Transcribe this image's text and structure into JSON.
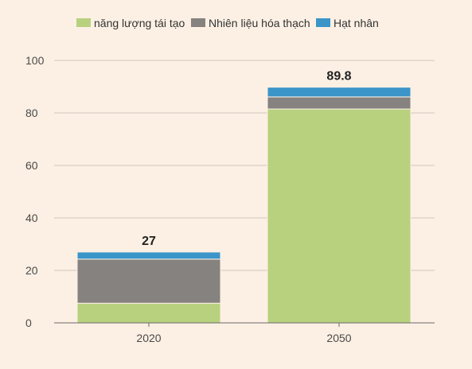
{
  "chart_data": {
    "type": "bar",
    "stacked": true,
    "categories": [
      "2020",
      "2050"
    ],
    "series": [
      {
        "name": "năng lượng tái tạo",
        "color": "#b8d17e",
        "values": [
          7.5,
          81.5
        ]
      },
      {
        "name": "Nhiên liệu hóa thạch",
        "color": "#858280",
        "values": [
          16.8,
          4.6
        ]
      },
      {
        "name": "Hạt nhân",
        "color": "#3b95c9",
        "values": [
          2.7,
          3.7
        ]
      }
    ],
    "totals": [
      "27",
      "89.8"
    ],
    "ylim": [
      0,
      100
    ],
    "yticks": [
      0,
      20,
      40,
      60,
      80,
      100
    ],
    "grid": true,
    "legend_position": "top",
    "title": "",
    "xlabel": "",
    "ylabel": ""
  }
}
